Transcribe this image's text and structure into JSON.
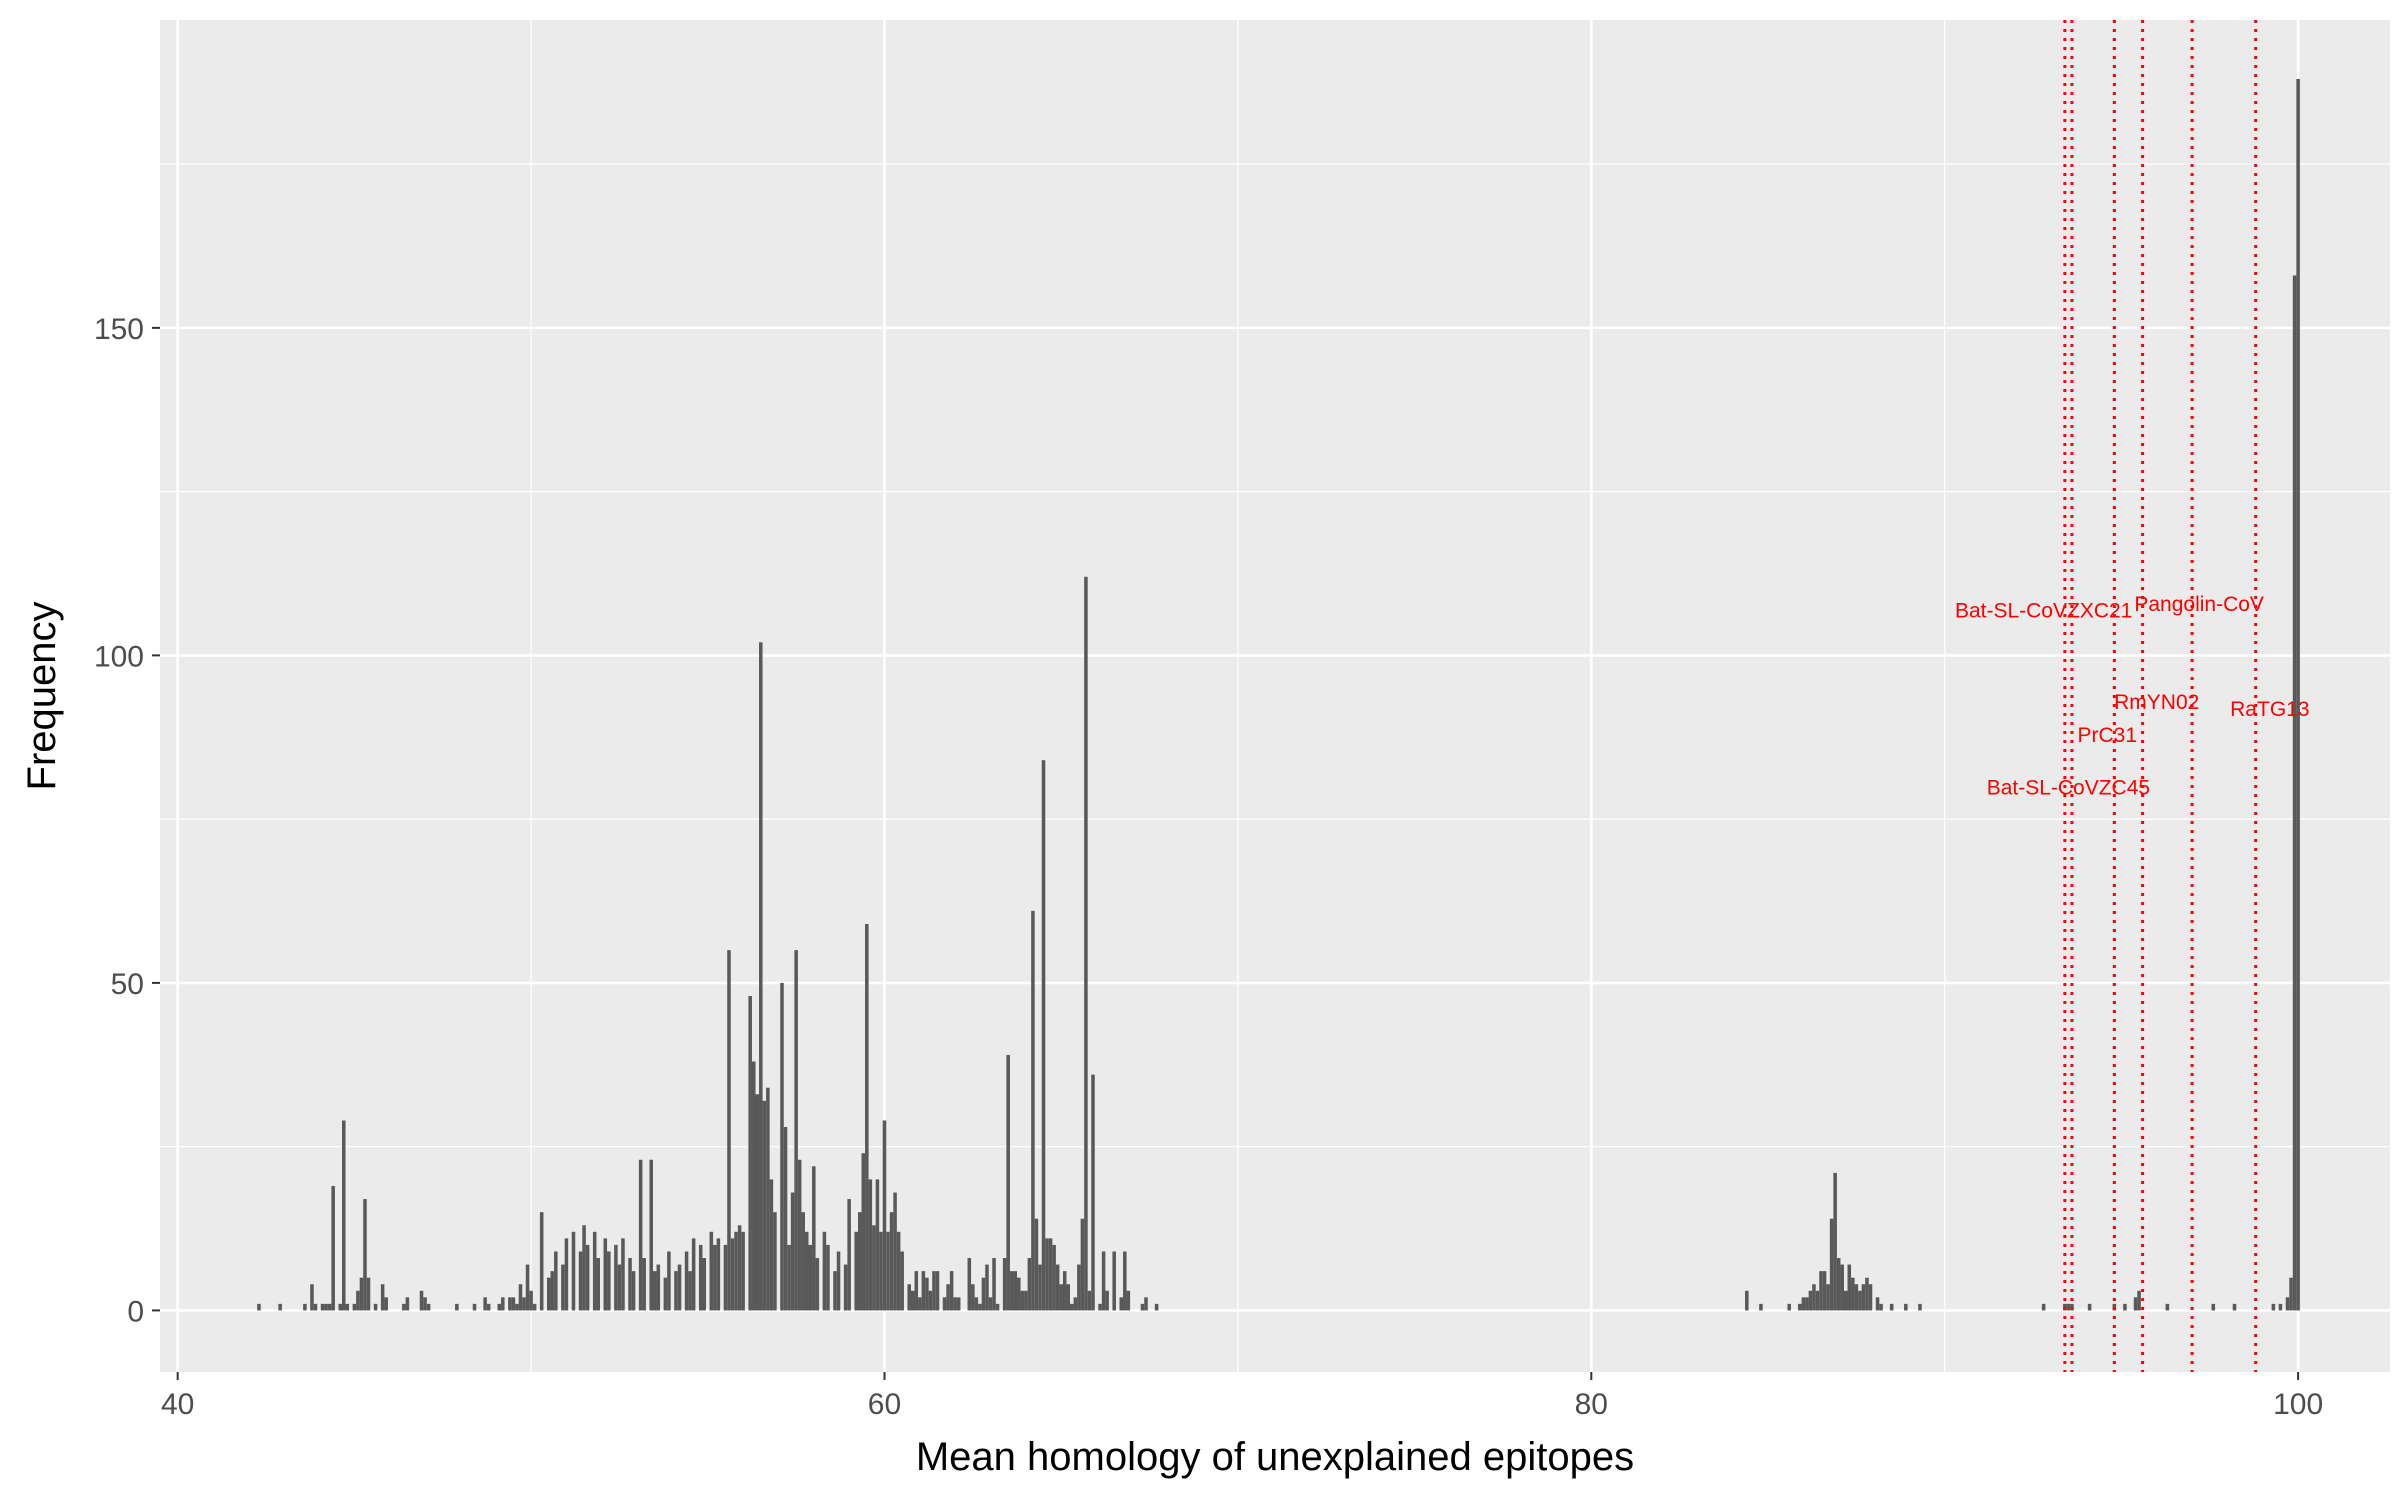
{
  "chart_data": {
    "type": "bar",
    "subtype": "histogram",
    "title": "",
    "xlabel": "Mean homology of unexplained epitopes",
    "ylabel": "Frequency",
    "xlim": [
      39.5,
      102.6
    ],
    "ylim": [
      -9.4,
      197
    ],
    "x_ticks": [
      40,
      60,
      80,
      100
    ],
    "y_ticks": [
      0,
      50,
      100,
      150
    ],
    "grid": true,
    "legend": "none",
    "bar_color": "#595959",
    "panel_background": "#ebebeb",
    "bins": [
      [
        42.3,
        1
      ],
      [
        42.9,
        1
      ],
      [
        43.6,
        1
      ],
      [
        43.8,
        4
      ],
      [
        43.9,
        1
      ],
      [
        44.1,
        1
      ],
      [
        44.2,
        1
      ],
      [
        44.3,
        1
      ],
      [
        44.4,
        19
      ],
      [
        44.6,
        1
      ],
      [
        44.7,
        29
      ],
      [
        44.8,
        1
      ],
      [
        45.0,
        1
      ],
      [
        45.1,
        3
      ],
      [
        45.2,
        5
      ],
      [
        45.3,
        17
      ],
      [
        45.4,
        5
      ],
      [
        45.6,
        1
      ],
      [
        45.8,
        4
      ],
      [
        45.9,
        2
      ],
      [
        46.4,
        1
      ],
      [
        46.5,
        2
      ],
      [
        46.9,
        3
      ],
      [
        47.0,
        2
      ],
      [
        47.1,
        1
      ],
      [
        47.9,
        1
      ],
      [
        48.4,
        1
      ],
      [
        48.7,
        2
      ],
      [
        48.8,
        1
      ],
      [
        49.1,
        1
      ],
      [
        49.2,
        2
      ],
      [
        49.4,
        2
      ],
      [
        49.5,
        2
      ],
      [
        49.6,
        1
      ],
      [
        49.7,
        4
      ],
      [
        49.8,
        2
      ],
      [
        49.9,
        7
      ],
      [
        50.0,
        3
      ],
      [
        50.1,
        1
      ],
      [
        50.3,
        15
      ],
      [
        50.5,
        5
      ],
      [
        50.6,
        6
      ],
      [
        50.7,
        9
      ],
      [
        50.9,
        7
      ],
      [
        51.0,
        11
      ],
      [
        51.2,
        12
      ],
      [
        51.4,
        9
      ],
      [
        51.5,
        13
      ],
      [
        51.6,
        10
      ],
      [
        51.8,
        12
      ],
      [
        51.9,
        8
      ],
      [
        52.1,
        11
      ],
      [
        52.2,
        9
      ],
      [
        52.4,
        10
      ],
      [
        52.5,
        7
      ],
      [
        52.6,
        11
      ],
      [
        52.8,
        8
      ],
      [
        52.9,
        6
      ],
      [
        53.1,
        23
      ],
      [
        53.2,
        8
      ],
      [
        53.4,
        23
      ],
      [
        53.5,
        6
      ],
      [
        53.6,
        7
      ],
      [
        53.8,
        5
      ],
      [
        53.9,
        9
      ],
      [
        54.1,
        6
      ],
      [
        54.2,
        7
      ],
      [
        54.4,
        9
      ],
      [
        54.5,
        6
      ],
      [
        54.6,
        11
      ],
      [
        54.8,
        10
      ],
      [
        54.9,
        8
      ],
      [
        55.1,
        12
      ],
      [
        55.2,
        10
      ],
      [
        55.3,
        11
      ],
      [
        55.5,
        10
      ],
      [
        55.6,
        55
      ],
      [
        55.7,
        11
      ],
      [
        55.8,
        12
      ],
      [
        55.9,
        13
      ],
      [
        56.0,
        12
      ],
      [
        56.2,
        48
      ],
      [
        56.3,
        38
      ],
      [
        56.4,
        33
      ],
      [
        56.5,
        102
      ],
      [
        56.6,
        32
      ],
      [
        56.7,
        34
      ],
      [
        56.8,
        20
      ],
      [
        56.9,
        15
      ],
      [
        57.1,
        50
      ],
      [
        57.2,
        28
      ],
      [
        57.3,
        10
      ],
      [
        57.4,
        18
      ],
      [
        57.5,
        55
      ],
      [
        57.6,
        23
      ],
      [
        57.7,
        15
      ],
      [
        57.8,
        12
      ],
      [
        57.9,
        10
      ],
      [
        58.0,
        22
      ],
      [
        58.1,
        8
      ],
      [
        58.3,
        12
      ],
      [
        58.4,
        10
      ],
      [
        58.6,
        6
      ],
      [
        58.7,
        9
      ],
      [
        58.9,
        7
      ],
      [
        59.0,
        17
      ],
      [
        59.2,
        12
      ],
      [
        59.3,
        15
      ],
      [
        59.4,
        24
      ],
      [
        59.5,
        59
      ],
      [
        59.6,
        20
      ],
      [
        59.7,
        13
      ],
      [
        59.8,
        20
      ],
      [
        59.9,
        12
      ],
      [
        60.0,
        29
      ],
      [
        60.1,
        12
      ],
      [
        60.2,
        15
      ],
      [
        60.3,
        18
      ],
      [
        60.4,
        12
      ],
      [
        60.5,
        9
      ],
      [
        60.7,
        4
      ],
      [
        60.8,
        3
      ],
      [
        60.9,
        6
      ],
      [
        61.0,
        2
      ],
      [
        61.1,
        6
      ],
      [
        61.2,
        5
      ],
      [
        61.3,
        3
      ],
      [
        61.4,
        6
      ],
      [
        61.5,
        6
      ],
      [
        61.7,
        2
      ],
      [
        61.8,
        4
      ],
      [
        61.9,
        6
      ],
      [
        62.0,
        2
      ],
      [
        62.1,
        2
      ],
      [
        62.4,
        8
      ],
      [
        62.5,
        4
      ],
      [
        62.6,
        2
      ],
      [
        62.7,
        1
      ],
      [
        62.8,
        5
      ],
      [
        62.9,
        7
      ],
      [
        63.0,
        2
      ],
      [
        63.1,
        8
      ],
      [
        63.2,
        1
      ],
      [
        63.4,
        8
      ],
      [
        63.5,
        39
      ],
      [
        63.6,
        6
      ],
      [
        63.7,
        6
      ],
      [
        63.8,
        5
      ],
      [
        63.9,
        3
      ],
      [
        64.0,
        3
      ],
      [
        64.1,
        8
      ],
      [
        64.2,
        61
      ],
      [
        64.3,
        14
      ],
      [
        64.4,
        7
      ],
      [
        64.5,
        84
      ],
      [
        64.6,
        11
      ],
      [
        64.7,
        11
      ],
      [
        64.8,
        10
      ],
      [
        64.9,
        7
      ],
      [
        65.0,
        4
      ],
      [
        65.1,
        6
      ],
      [
        65.2,
        4
      ],
      [
        65.3,
        1
      ],
      [
        65.4,
        2
      ],
      [
        65.5,
        7
      ],
      [
        65.6,
        14
      ],
      [
        65.7,
        112
      ],
      [
        65.8,
        3
      ],
      [
        65.9,
        36
      ],
      [
        66.1,
        1
      ],
      [
        66.2,
        9
      ],
      [
        66.3,
        3
      ],
      [
        66.5,
        9
      ],
      [
        66.7,
        2
      ],
      [
        66.8,
        9
      ],
      [
        66.9,
        3
      ],
      [
        67.3,
        1
      ],
      [
        67.4,
        2
      ],
      [
        67.7,
        1
      ],
      [
        84.4,
        3
      ],
      [
        84.8,
        1
      ],
      [
        85.6,
        1
      ],
      [
        85.9,
        1
      ],
      [
        86.0,
        2
      ],
      [
        86.1,
        2
      ],
      [
        86.2,
        3
      ],
      [
        86.3,
        4
      ],
      [
        86.4,
        3
      ],
      [
        86.5,
        6
      ],
      [
        86.6,
        6
      ],
      [
        86.7,
        4
      ],
      [
        86.8,
        14
      ],
      [
        86.9,
        21
      ],
      [
        87.0,
        8
      ],
      [
        87.1,
        7
      ],
      [
        87.2,
        3
      ],
      [
        87.3,
        7
      ],
      [
        87.4,
        5
      ],
      [
        87.5,
        4
      ],
      [
        87.6,
        3
      ],
      [
        87.7,
        4
      ],
      [
        87.8,
        5
      ],
      [
        87.9,
        4
      ],
      [
        88.1,
        2
      ],
      [
        88.2,
        1
      ],
      [
        88.5,
        1
      ],
      [
        88.9,
        1
      ],
      [
        89.3,
        1
      ],
      [
        92.8,
        1
      ],
      [
        93.4,
        1
      ],
      [
        93.5,
        1
      ],
      [
        93.6,
        1
      ],
      [
        94.1,
        1
      ],
      [
        94.8,
        1
      ],
      [
        95.1,
        1
      ],
      [
        95.4,
        2
      ],
      [
        95.5,
        3
      ],
      [
        96.3,
        1
      ],
      [
        97.6,
        1
      ],
      [
        98.2,
        1
      ],
      [
        99.3,
        1
      ],
      [
        99.5,
        1
      ],
      [
        99.7,
        2
      ],
      [
        99.8,
        5
      ],
      [
        99.9,
        158
      ],
      [
        100.0,
        188
      ]
    ],
    "reference_lines": [
      {
        "x": 93.4,
        "label": "Bat-SL-CoVZC45",
        "label_x": 93.5,
        "label_y": 80
      },
      {
        "x": 93.6,
        "label": "Bat-SL-CoVZXC21",
        "label_x": 92.8,
        "label_y": 107
      },
      {
        "x": 94.8,
        "label": "PrC31",
        "label_x": 94.6,
        "label_y": 88
      },
      {
        "x": 95.6,
        "label": "RmYN02",
        "label_x": 96.0,
        "label_y": 93
      },
      {
        "x": 97.0,
        "label": "Pangolin-CoV",
        "label_x": 97.2,
        "label_y": 108
      },
      {
        "x": 98.8,
        "label": "RaTG13",
        "label_x": 99.2,
        "label_y": 92
      }
    ],
    "reference_line_color": "#ff0000"
  }
}
